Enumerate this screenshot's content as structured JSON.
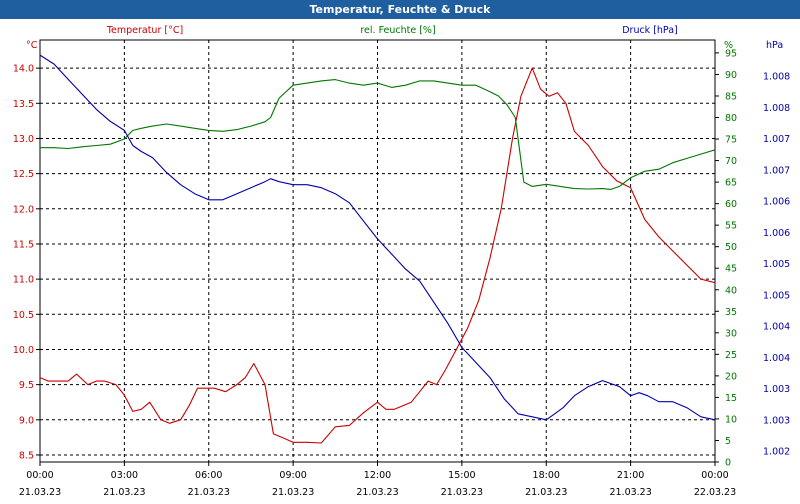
{
  "window": {
    "title": "Temperatur, Feuchte & Druck"
  },
  "colors": {
    "temperature": "#cc0000",
    "humidity": "#007700",
    "pressure": "#0000aa",
    "titlebar": "#1f5fa0"
  },
  "chart_data": {
    "type": "line",
    "grid": true,
    "legend": "top",
    "x_ticks": [
      {
        "time": "00:00",
        "date": "21.03.23"
      },
      {
        "time": "03:00",
        "date": "21.03.23"
      },
      {
        "time": "06:00",
        "date": "21.03.23"
      },
      {
        "time": "09:00",
        "date": "21.03.23"
      },
      {
        "time": "12:00",
        "date": "21.03.23"
      },
      {
        "time": "15:00",
        "date": "21.03.23"
      },
      {
        "time": "18:00",
        "date": "21.03.23"
      },
      {
        "time": "21:00",
        "date": "21.03.23"
      },
      {
        "time": "00:00",
        "date": "22.03.23"
      }
    ],
    "xlim_hours": [
      0,
      24
    ],
    "axes": {
      "temperature": {
        "unit": "°C",
        "label": "Temperatur [°C]",
        "ylim": [
          8.4,
          14.4
        ],
        "ticks": [
          "14.0",
          "13.5",
          "13.0",
          "12.5",
          "12.0",
          "11.5",
          "11.0",
          "10.5",
          "10.0",
          "9.5",
          "9.0",
          "8.5"
        ]
      },
      "humidity": {
        "unit": "%",
        "label": "rel. Feuchte [%]",
        "ylim": [
          0,
          98
        ],
        "ticks": [
          "95",
          "90",
          "85",
          "80",
          "75",
          "70",
          "65",
          "60",
          "55",
          "50",
          "45",
          "40",
          "35",
          "30",
          "25",
          "20",
          "15",
          "10",
          "5",
          "0"
        ]
      },
      "pressure": {
        "unit": "hPa",
        "label": "Druck [hPa]",
        "ylim": [
          1001.6,
          1008.6
        ],
        "ticks": [
          "1.008",
          "1.008",
          "1.007",
          "1.007",
          "1.006",
          "1.006",
          "1.005",
          "1.005",
          "1.004",
          "1.004",
          "1.003",
          "1.003",
          "1.002"
        ]
      }
    },
    "series": [
      {
        "name": "Temperatur [°C]",
        "axis": "temperature",
        "x": [
          0,
          0.3,
          0.6,
          1,
          1.3,
          1.7,
          2,
          2.3,
          2.7,
          3,
          3.3,
          3.6,
          3.9,
          4.3,
          4.6,
          5,
          5.3,
          5.6,
          5.9,
          6.2,
          6.6,
          7,
          7.3,
          7.6,
          8,
          8.3,
          8.6,
          9,
          9.5,
          10,
          10.5,
          11,
          11.5,
          12,
          12.3,
          12.6,
          12.9,
          13.2,
          13.5,
          13.8,
          14.1,
          14.4,
          14.8,
          15.2,
          15.6,
          16,
          16.4,
          16.8,
          17.1,
          17.5,
          17.8,
          18.1,
          18.4,
          18.7,
          19,
          19.5,
          20,
          20.5,
          21,
          21.5,
          22,
          22.5,
          23,
          23.5,
          24
        ],
        "values": [
          9.6,
          9.55,
          9.55,
          9.55,
          9.65,
          9.5,
          9.55,
          9.55,
          9.5,
          9.35,
          9.12,
          9.15,
          9.25,
          9.0,
          8.95,
          9.0,
          9.2,
          9.45,
          9.45,
          9.45,
          9.4,
          9.5,
          9.6,
          9.8,
          9.5,
          8.8,
          8.75,
          8.68,
          8.68,
          8.67,
          8.9,
          8.92,
          9.1,
          9.25,
          9.15,
          9.15,
          9.2,
          9.25,
          9.4,
          9.55,
          9.5,
          9.7,
          10.0,
          10.3,
          10.7,
          11.3,
          12.0,
          13.0,
          13.6,
          14.0,
          13.7,
          13.6,
          13.65,
          13.5,
          13.1,
          12.9,
          12.6,
          12.4,
          12.3,
          11.85,
          11.6,
          11.4,
          11.2,
          11.0,
          10.95
        ]
      },
      {
        "name": "rel. Feuchte [%]",
        "axis": "humidity",
        "x": [
          0,
          0.5,
          1,
          1.5,
          2,
          2.5,
          3,
          3.3,
          3.6,
          4,
          4.5,
          5,
          5.5,
          6,
          6.5,
          7,
          7.5,
          8,
          8.2,
          8.5,
          9,
          9.5,
          10,
          10.5,
          11,
          11.5,
          12,
          12.5,
          13,
          13.5,
          14,
          14.5,
          15,
          15.5,
          16,
          16.3,
          16.6,
          16.9,
          17,
          17.2,
          17.5,
          18,
          18.5,
          19,
          19.5,
          20,
          20.3,
          20.6,
          21,
          21.5,
          22,
          22.5,
          23,
          23.5,
          24
        ],
        "values": [
          73,
          73,
          72.8,
          73.2,
          73.5,
          73.8,
          75,
          77,
          77.5,
          78,
          78.5,
          78,
          77.5,
          77,
          76.8,
          77.2,
          78,
          79,
          80,
          84.5,
          87.5,
          88,
          88.5,
          88.8,
          88,
          87.5,
          88,
          87,
          87.5,
          88.5,
          88.5,
          88,
          87.5,
          87.5,
          86,
          85,
          83,
          80,
          75,
          65,
          64,
          64.5,
          64,
          63.5,
          63.4,
          63.5,
          63.3,
          64,
          66,
          67.5,
          68,
          69.5,
          70.5,
          71.5,
          72.5
        ]
      },
      {
        "name": "Druck [hPa]",
        "axis": "pressure",
        "x": [
          0,
          0.5,
          1,
          1.5,
          2,
          2.5,
          3,
          3.3,
          3.6,
          4,
          4.5,
          5,
          5.5,
          6,
          6.5,
          7,
          7.5,
          8,
          8.2,
          8.5,
          9,
          9.5,
          10,
          10.5,
          11,
          11.5,
          12,
          12.5,
          13,
          13.5,
          14,
          14.5,
          15,
          15.5,
          16,
          16.5,
          17,
          17.5,
          18,
          18.3,
          18.6,
          19,
          19.5,
          20,
          20.3,
          20.6,
          21,
          21.3,
          21.6,
          22,
          22.5,
          23,
          23.5,
          24
        ],
        "values": [
          1008.35,
          1008.2,
          1007.95,
          1007.7,
          1007.45,
          1007.25,
          1007.1,
          1006.85,
          1006.75,
          1006.65,
          1006.4,
          1006.2,
          1006.05,
          1005.95,
          1005.95,
          1006.05,
          1006.15,
          1006.25,
          1006.3,
          1006.25,
          1006.2,
          1006.2,
          1006.15,
          1006.05,
          1005.9,
          1005.6,
          1005.3,
          1005.05,
          1004.8,
          1004.6,
          1004.25,
          1003.9,
          1003.5,
          1003.25,
          1003.0,
          1002.65,
          1002.4,
          1002.35,
          1002.3,
          1002.4,
          1002.5,
          1002.7,
          1002.85,
          1002.95,
          1002.9,
          1002.85,
          1002.7,
          1002.75,
          1002.7,
          1002.6,
          1002.6,
          1002.5,
          1002.35,
          1002.3
        ]
      }
    ]
  }
}
